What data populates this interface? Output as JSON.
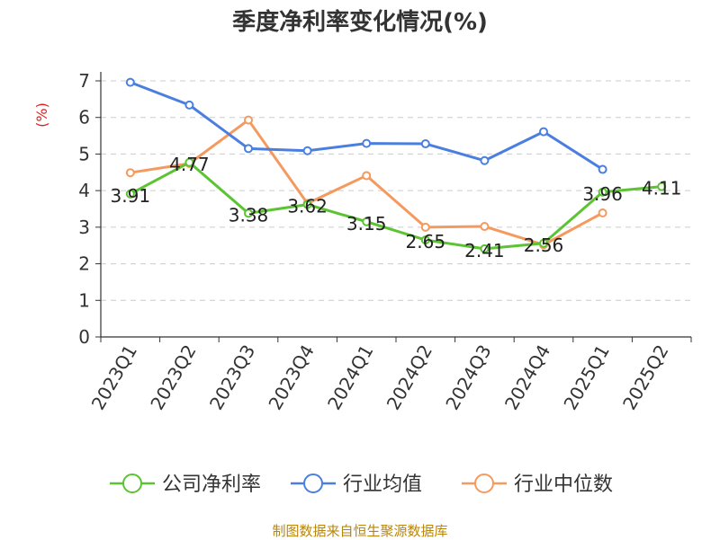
{
  "chart_data": {
    "type": "line",
    "title": "季度净利率变化情况(%)",
    "ylabel": "(%)",
    "xlabel": "",
    "categories": [
      "2023Q1",
      "2023Q2",
      "2023Q3",
      "2023Q4",
      "2024Q1",
      "2024Q2",
      "2024Q3",
      "2024Q4",
      "2025Q1",
      "2025Q2"
    ],
    "ylim": [
      0,
      7
    ],
    "yticks": [
      "0",
      "1",
      "2",
      "3",
      "4",
      "5",
      "6",
      "7"
    ],
    "grid": true,
    "legend_position": "bottom",
    "series": [
      {
        "name": "公司净利率",
        "color": "#5cc433",
        "values": [
          3.91,
          4.77,
          3.38,
          3.62,
          3.15,
          2.65,
          2.41,
          2.56,
          3.96,
          4.11
        ],
        "labels": [
          "3.91",
          "4.77",
          "3.38",
          "3.62",
          "3.15",
          "2.65",
          "2.41",
          "2.56",
          "3.96",
          "4.11"
        ]
      },
      {
        "name": "行业均值",
        "color": "#4a7fe0",
        "values": [
          6.96,
          6.34,
          5.15,
          5.09,
          5.29,
          5.28,
          4.82,
          5.61,
          4.58,
          null
        ]
      },
      {
        "name": "行业中位数",
        "color": "#f59a5e",
        "values": [
          4.49,
          4.74,
          5.93,
          3.65,
          4.41,
          3.0,
          3.02,
          2.52,
          3.39,
          null
        ]
      }
    ]
  },
  "source": "制图数据来自恒生聚源数据库",
  "colors": {
    "axis": "#333333",
    "grid": "#cccccc",
    "ylabel": "#e02020",
    "source": "#b8860b"
  }
}
